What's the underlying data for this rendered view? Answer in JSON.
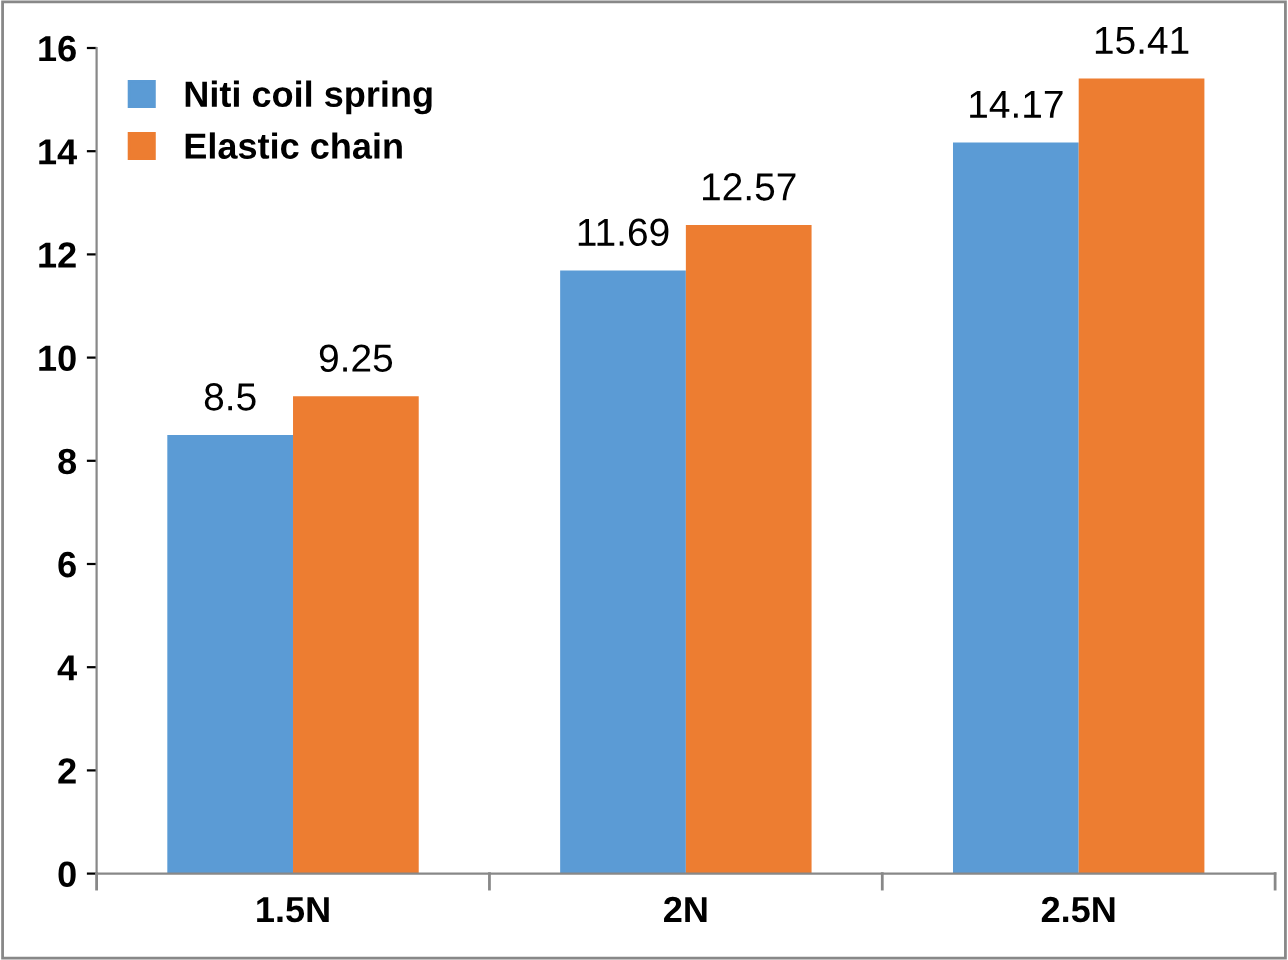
{
  "chart_data": {
    "type": "bar",
    "categories": [
      "1.5N",
      "2N",
      "2.5N"
    ],
    "series": [
      {
        "name": "Niti coil spring",
        "color": "#5b9bd5",
        "values": [
          8.5,
          11.69,
          14.17
        ]
      },
      {
        "name": "Elastic chain",
        "color": "#ed7d31",
        "values": [
          9.25,
          12.57,
          15.41
        ]
      }
    ],
    "ylim": [
      0,
      16
    ],
    "yticks": [
      0,
      2,
      4,
      6,
      8,
      10,
      12,
      14,
      16
    ],
    "grid": false,
    "legend": "top left",
    "data_labels": true
  }
}
